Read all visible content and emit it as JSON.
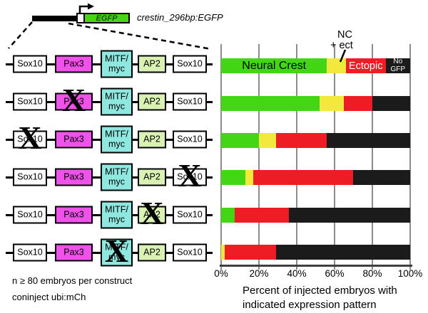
{
  "header": {
    "egfp_box_label": "EGFP",
    "construct_name": "crestin_296bp:EGFP"
  },
  "constructs": {
    "x_mark": "X",
    "boxes": [
      {
        "label": "Sox10",
        "color": "#ffffff"
      },
      {
        "label": "Pax3",
        "color": "#ef52e9"
      },
      {
        "label": "MITF/myc",
        "lines": [
          "MITF/",
          "myc"
        ],
        "color": "#8fe8e0"
      },
      {
        "label": "AP2",
        "color": "#d9f2b3"
      },
      {
        "label": "Sox10",
        "color": "#ffffff"
      }
    ],
    "rows": [
      {
        "name": "intact construct",
        "x_on": null
      },
      {
        "name": "Pax3 site mutated",
        "x_on": 1
      },
      {
        "name": "Sox10 left site mutated",
        "x_on": 0
      },
      {
        "name": "Sox10 right site mutated",
        "x_on": 4
      },
      {
        "name": "AP2 site mutated",
        "x_on": 3
      },
      {
        "name": "MITF/myc site mutated",
        "x_on": 2
      }
    ]
  },
  "chart_data": {
    "type": "bar",
    "orientation": "horizontal",
    "stacked": true,
    "grid": true,
    "xlim": [
      0,
      100
    ],
    "x_ticks": [
      "0%",
      "20%",
      "40%",
      "60%",
      "80%",
      "100%"
    ],
    "xlabel_lines": [
      "Percent of injected embryos with",
      "indicated expression pattern"
    ],
    "categories": [
      "intact construct",
      "Pax3 site X",
      "Sox10 left site X",
      "Sox10 right site X",
      "AP2 site X",
      "MITF/myc site X"
    ],
    "series": [
      {
        "name": "Neural Crest",
        "color": "#43d614",
        "values": [
          56,
          52,
          20,
          13,
          7,
          0
        ]
      },
      {
        "name": "NC + ect",
        "color": "#f2e93c",
        "values": [
          10,
          13,
          9,
          4,
          0,
          2
        ]
      },
      {
        "name": "Ectopic",
        "color": "#ee1c24",
        "values": [
          21,
          15,
          27,
          53,
          29,
          27
        ]
      },
      {
        "name": "No GFP",
        "color": "#1b1b1b",
        "values": [
          13,
          20,
          44,
          30,
          64,
          71
        ]
      }
    ]
  },
  "bar_labels": {
    "neural_crest": "Neural Crest",
    "ectopic": "Ectopic",
    "no_gfp_lines": [
      "No",
      "GFP"
    ],
    "nc_ect_lines": [
      "NC",
      "+ ect"
    ]
  },
  "footer": {
    "line1": "n ≥ 80 embryos per construct",
    "line2": "coninject ubi:mCh"
  }
}
